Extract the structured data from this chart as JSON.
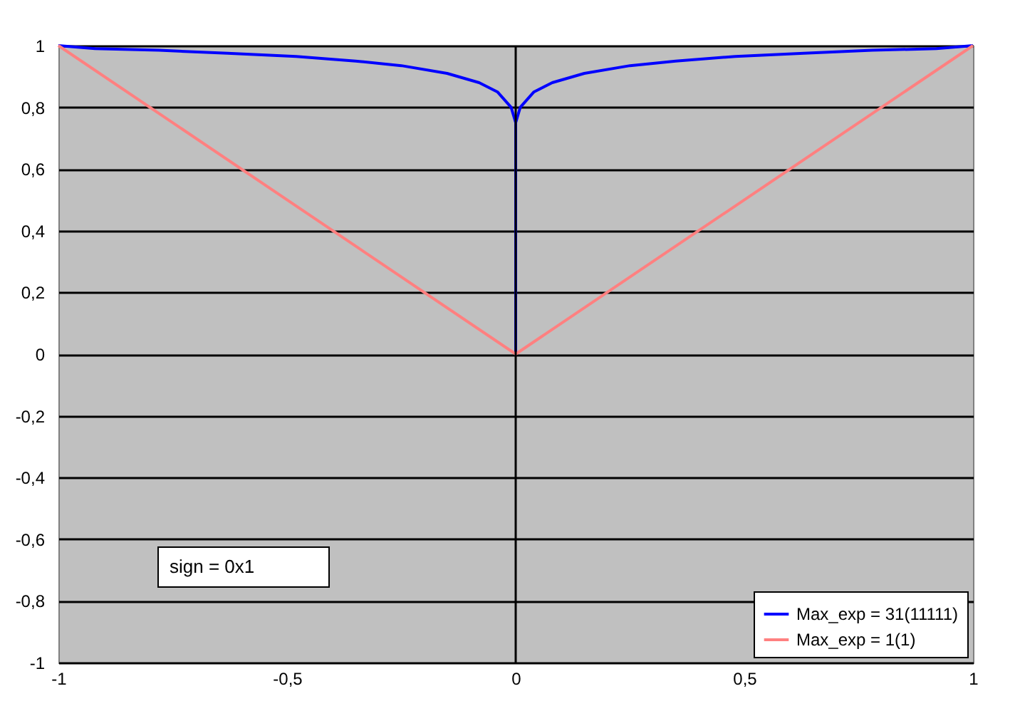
{
  "chart_data": {
    "type": "line",
    "series": [
      {
        "name": "Max_exp = 31(11111)",
        "color": "#0000ff",
        "x": [
          -1,
          -0.92,
          -0.78,
          -0.63,
          -0.48,
          -0.35,
          -0.25,
          -0.15,
          -0.08,
          -0.04,
          -0.01,
          0,
          0,
          0,
          0.01,
          0.04,
          0.08,
          0.15,
          0.25,
          0.35,
          0.48,
          0.63,
          0.78,
          0.92,
          1
        ],
        "values": [
          1,
          0.99,
          0.985,
          0.975,
          0.965,
          0.95,
          0.935,
          0.91,
          0.88,
          0.85,
          0.8,
          0.75,
          0,
          0.75,
          0.8,
          0.85,
          0.88,
          0.91,
          0.935,
          0.95,
          0.965,
          0.975,
          0.985,
          0.99,
          1
        ]
      },
      {
        "name": "Max_exp = 1(1)",
        "color": "#ff8080",
        "x": [
          -1,
          0,
          1
        ],
        "values": [
          1,
          0,
          1
        ]
      }
    ],
    "xlim": [
      -1,
      1
    ],
    "xticks": [
      -1,
      {
        "value": -0.5,
        "label": "-0,5"
      },
      0,
      {
        "value": 0.5,
        "label": "0,5"
      },
      1
    ],
    "ylim": [
      -1,
      1
    ],
    "yticks": [
      -1,
      {
        "value": -0.8,
        "label": "-0,8"
      },
      {
        "value": -0.6,
        "label": "-0,6"
      },
      {
        "value": -0.4,
        "label": "-0,4"
      },
      {
        "value": -0.2,
        "label": "-0,2"
      },
      0,
      {
        "value": 0.2,
        "label": "0,2"
      },
      {
        "value": 0.4,
        "label": "0,4"
      },
      {
        "value": 0.6,
        "label": "0,6"
      },
      {
        "value": 0.8,
        "label": "0,8"
      },
      1
    ],
    "grid": "y",
    "legend": "bottom right",
    "marker": "none",
    "line_style": "solid",
    "ref_lines": [
      {
        "axis": "x",
        "value": 0,
        "color": "#000000"
      }
    ],
    "annotations": [
      "sign = 0x1"
    ]
  }
}
